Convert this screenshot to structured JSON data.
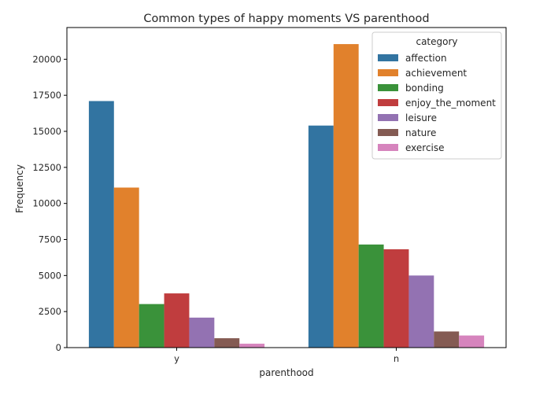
{
  "chart_data": {
    "type": "bar",
    "title": "Common types of happy moments VS parenthood",
    "xlabel": "parenthood",
    "ylabel": "Frequency",
    "categories": [
      "y",
      "n"
    ],
    "ylim": [
      0,
      22200
    ],
    "yticks": [
      0,
      2500,
      5000,
      7500,
      10000,
      12500,
      15000,
      17500,
      20000
    ],
    "grid": false,
    "legend": {
      "title": "category",
      "placement": "top-right"
    },
    "series": [
      {
        "name": "affection",
        "color": "#3274a1",
        "values": [
          17100,
          15400
        ]
      },
      {
        "name": "achievement",
        "color": "#e1812c",
        "values": [
          11100,
          21050
        ]
      },
      {
        "name": "bonding",
        "color": "#3a923a",
        "values": [
          3020,
          7150
        ]
      },
      {
        "name": "enjoy_the_moment",
        "color": "#c03d3e",
        "values": [
          3760,
          6820
        ]
      },
      {
        "name": "leisure",
        "color": "#9372b2",
        "values": [
          2080,
          5000
        ]
      },
      {
        "name": "nature",
        "color": "#845b53",
        "values": [
          650,
          1120
        ]
      },
      {
        "name": "exercise",
        "color": "#d684bd",
        "values": [
          270,
          840
        ]
      }
    ]
  }
}
